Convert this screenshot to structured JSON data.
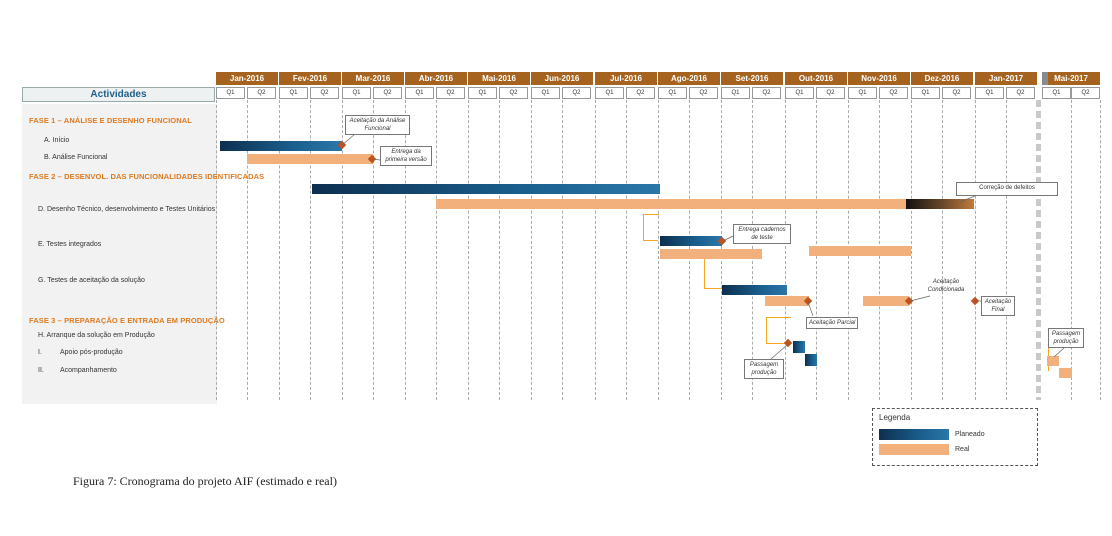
{
  "header": {
    "activities_label": "Actividades",
    "months": [
      "Jan-2016",
      "Fev-2016",
      "Mar-2016",
      "Abr-2016",
      "Mai-2016",
      "Jun-2016",
      "Jul-2016",
      "Ago-2016",
      "Set-2016",
      "Out-2016",
      "Nov-2016",
      "Dez-2016",
      "Jan-2017",
      "Mai-2017"
    ],
    "quarter_labels": [
      "Q1",
      "Q2"
    ]
  },
  "phases": {
    "phase1": "FASE 1 – ANÁLISE E DESENHO FUNCIONAL",
    "phase2": "FASE 2 – DESENVOL. DAS FUNCIONALIDADES IDENTIFICADAS",
    "phase3": "FASE 3 – PREPARAÇÃO E ENTRADA EM PRODUÇÃO"
  },
  "tasks": {
    "a": "A. Início",
    "b": "B. Análise Funcional",
    "d": "D. Desenho Técnico, desenvolvimento e Testes Unitários",
    "e": "E. Testes integrados",
    "g": "G. Testes de aceitação da solução",
    "h": "H. Arranque da solução em Produção",
    "i_num": "I.",
    "i_label": "Apoio pós-produção",
    "ii_num": "II.",
    "ii_label": "Acompanhamento"
  },
  "callouts": {
    "aceitacao_af": "Aceitação da Análise Funcional",
    "entrega_pv": "Entrega da primeira versão",
    "correcao": "Correção de defeitos",
    "entrega_ct": "Entrega cadernos de teste",
    "aceitacao_cond": "Aceitação Condicionada",
    "aceitacao_final": "Aceitação Final",
    "aceitacao_parcial": "Aceitação Parcial",
    "passagem1": "Passagem produção",
    "passagem2": "Passagem produção"
  },
  "legend": {
    "title": "Legenda",
    "planned": "Planeado",
    "real": "Real",
    "colors": {
      "planned": "#1a5f8e",
      "real": "#f2b17c",
      "milestone": "#c0521d"
    }
  },
  "caption": "Figura 7: Cronograma do projeto AIF (estimado e real)"
}
